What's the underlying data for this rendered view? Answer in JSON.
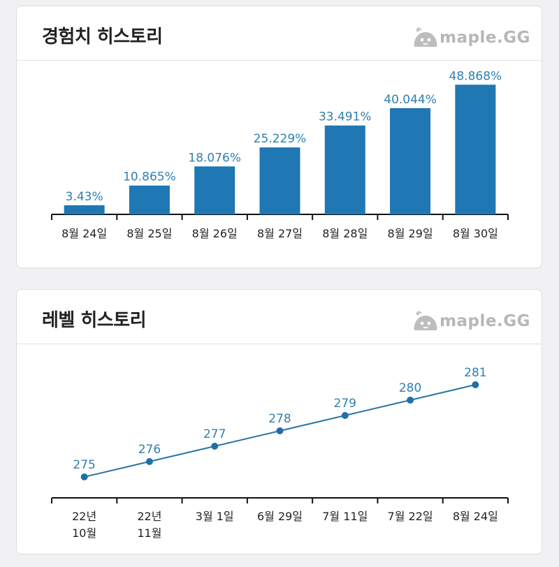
{
  "brand": {
    "logo_text": "maple.GG"
  },
  "exp_card": {
    "title": "경험치 히스토리"
  },
  "level_card": {
    "title": "레벨 히스토리"
  },
  "chart_data": [
    {
      "type": "bar",
      "title": "경험치 히스토리",
      "categories": [
        "8월 24일",
        "8월 25일",
        "8월 26일",
        "8월 27일",
        "8월 28일",
        "8월 29일",
        "8월 30일"
      ],
      "values": [
        3.43,
        10.865,
        18.076,
        25.229,
        33.491,
        40.044,
        48.868
      ],
      "labels": [
        "3.43%",
        "10.865%",
        "18.076%",
        "25.229%",
        "33.491%",
        "40.044%",
        "48.868%"
      ],
      "ylim": [
        0,
        50
      ],
      "color": "#1f77b4"
    },
    {
      "type": "line",
      "title": "레벨 히스토리",
      "categories": [
        [
          "22년",
          "10월"
        ],
        [
          "22년",
          "11월"
        ],
        [
          "3월 1일"
        ],
        [
          "6월 29일"
        ],
        [
          "7월 11일"
        ],
        [
          "7월 22일"
        ],
        [
          "8월 24일"
        ]
      ],
      "values": [
        275,
        276,
        277,
        278,
        279,
        280,
        281
      ],
      "labels": [
        "275",
        "276",
        "277",
        "278",
        "279",
        "280",
        "281"
      ],
      "ylim": [
        275,
        281
      ],
      "color": "#2a73a6"
    }
  ]
}
